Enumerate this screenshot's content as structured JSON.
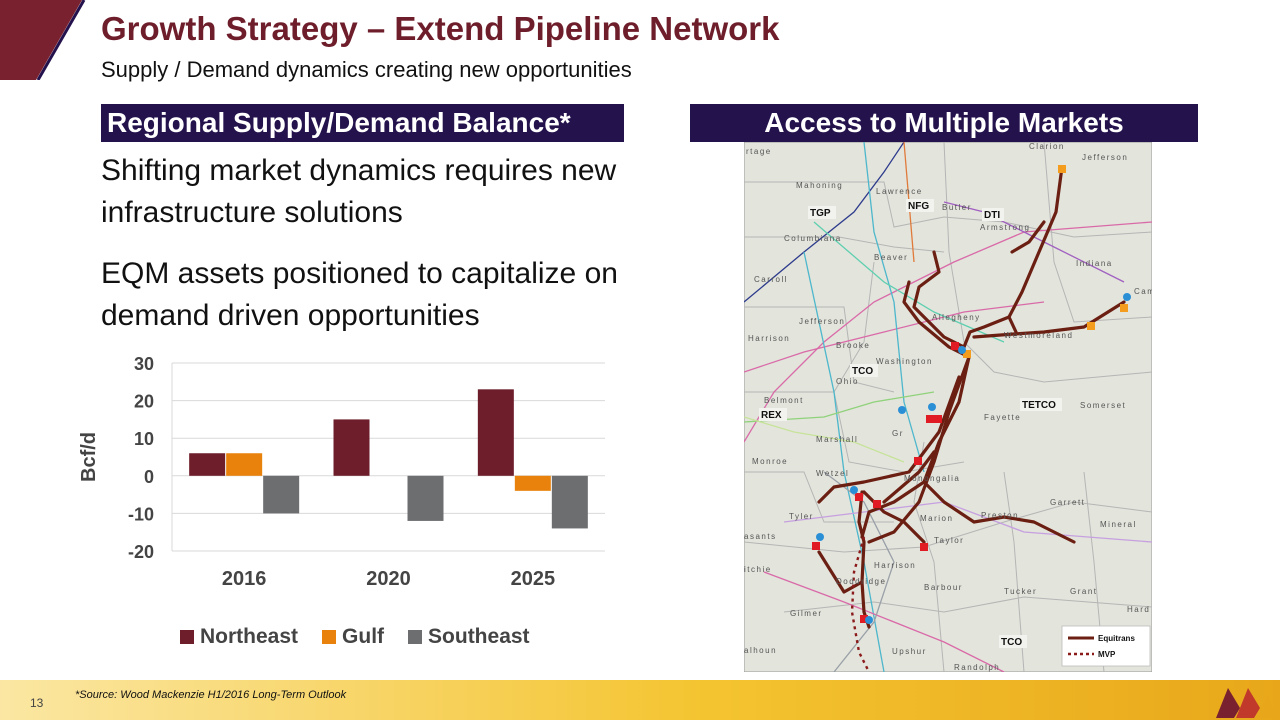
{
  "header": {
    "title": "Growth Strategy – Extend Pipeline Network",
    "subtitle": "Supply / Demand dynamics creating new opportunities"
  },
  "left_panel": {
    "banner": "Regional Supply/Demand Balance*",
    "bullet_1": "Shifting market dynamics requires new infrastructure solutions",
    "bullet_2": "EQM assets positioned to capitalize on demand driven opportunities"
  },
  "right_panel": {
    "banner": "Access to Multiple Markets"
  },
  "chart_data": {
    "type": "bar",
    "categories": [
      "2016",
      "2020",
      "2025"
    ],
    "series": [
      {
        "name": "Northeast",
        "values": [
          6,
          15,
          23
        ],
        "color": "#6e1e2b"
      },
      {
        "name": "Gulf",
        "values": [
          6,
          0,
          -4
        ],
        "color": "#e8820c"
      },
      {
        "name": "Southeast",
        "values": [
          -10,
          -12,
          -14
        ],
        "color": "#6d6e70"
      }
    ],
    "ylabel": "Bcf/d",
    "ylim": [
      -20,
      30
    ],
    "yticks": [
      30,
      20,
      10,
      0,
      -10,
      -20
    ],
    "grid": true,
    "legend_position": "bottom"
  },
  "map": {
    "pipeline_labels": [
      "TGP",
      "NFG",
      "DTI",
      "TCO",
      "REX",
      "TETCO",
      "TCO"
    ],
    "county_labels": [
      "rtage",
      "Clarion",
      "Jefferson",
      "Mahoning",
      "Lawrence",
      "Butler",
      "Armstrong",
      "Columbiana",
      "Indiana",
      "Beaver",
      "Carroll",
      "Cam",
      "Allegheny",
      "Jefferson",
      "Westmoreland",
      "Harrison",
      "Brooke",
      "Washington",
      "Ohio",
      "Belmont",
      "Somerset",
      "Fayette",
      "Marshall",
      "Gr",
      "Monroe",
      "Wetzel",
      "Monongalia",
      "Garrett",
      "Tyler",
      "Marion",
      "Preston",
      "Mineral",
      "asants",
      "Taylor",
      "itchie",
      "Harrison",
      "Doddridge",
      "Barbour",
      "Tucker",
      "Grant",
      "Gilmer",
      "Hard",
      "alhoun",
      "Upshur",
      "Randolph"
    ],
    "legend": [
      {
        "label": "Equitrans",
        "color": "#6b1f12"
      },
      {
        "label": "MVP",
        "color": "#8b1a1a"
      }
    ]
  },
  "footer": {
    "page_number": "13",
    "source": "*Source: Wood Mackenzie H1/2016 Long-Term Outlook"
  }
}
